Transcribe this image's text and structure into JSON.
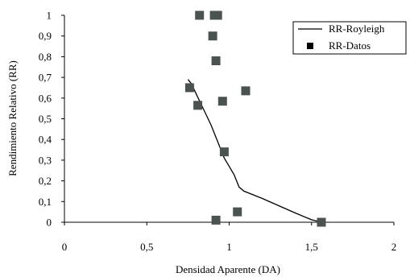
{
  "chart_data": {
    "type": "scatter",
    "title": "",
    "xlabel": "Densidad Aparente (DA)",
    "ylabel": "Rendimiento Relativo (RR)",
    "xlim": [
      0,
      2
    ],
    "ylim": [
      0,
      1
    ],
    "x_ticks": [
      "0",
      "0,5",
      "1",
      "1,5",
      "2"
    ],
    "y_ticks": [
      "0",
      "0,1",
      "0,2",
      "0,3",
      "0,4",
      "0,5",
      "0,6",
      "0,7",
      "0,8",
      "0,9",
      "1"
    ],
    "grid": false,
    "legend_position": "top-right",
    "series": [
      {
        "name": "RR-Royleigh",
        "kind": "line",
        "color": "#000000",
        "x": [
          0.75,
          0.77,
          0.8,
          0.83,
          0.86,
          0.89,
          0.91,
          0.93,
          0.95,
          0.97,
          1.0,
          1.03,
          1.06,
          1.09,
          1.2,
          1.3,
          1.4,
          1.5,
          1.56
        ],
        "y": [
          0.69,
          0.67,
          0.62,
          0.57,
          0.52,
          0.47,
          0.43,
          0.39,
          0.35,
          0.31,
          0.27,
          0.23,
          0.17,
          0.15,
          0.115,
          0.08,
          0.045,
          0.012,
          0.0
        ]
      },
      {
        "name": "RR-Datos",
        "kind": "scatter",
        "color": "#4a5350",
        "x": [
          0.82,
          0.91,
          0.93,
          0.9,
          0.92,
          1.1,
          0.96,
          0.76,
          0.81,
          0.97,
          1.05,
          0.92,
          1.56
        ],
        "y": [
          1.0,
          1.0,
          1.0,
          0.9,
          0.78,
          0.635,
          0.585,
          0.65,
          0.565,
          0.34,
          0.05,
          0.01,
          0.0
        ]
      }
    ]
  }
}
